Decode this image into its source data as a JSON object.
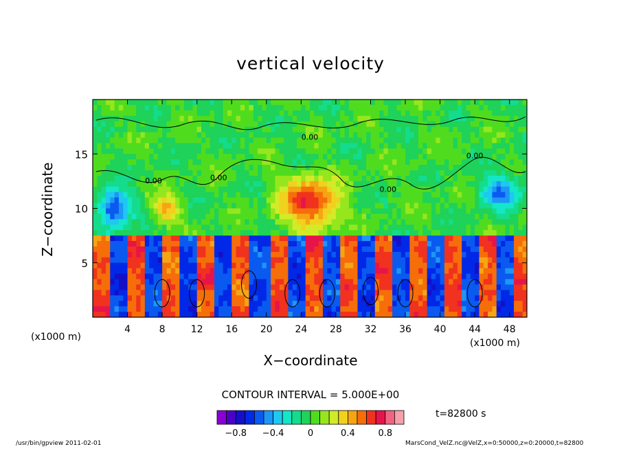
{
  "colors": {
    "palette": [
      "#8a00d4",
      "#4b00c8",
      "#1410c8",
      "#0028e6",
      "#0a5af0",
      "#1e96f5",
      "#1ec8f0",
      "#14e6c8",
      "#14dc8c",
      "#1ed25a",
      "#50dc1e",
      "#96e61e",
      "#d2eb28",
      "#f0d21e",
      "#f5a514",
      "#f56e0a",
      "#f0321e",
      "#e6144b",
      "#f06482",
      "#f5a0aa"
    ]
  },
  "chart_data": {
    "type": "heatmap",
    "title": "vertical velocity",
    "xlabel": "X−coordinate",
    "ylabel": "Z−coordinate",
    "xunit_left": "(x1000 m)",
    "xunit_right": "(x1000 m)",
    "xlim": [
      0,
      50
    ],
    "ylim": [
      0,
      20
    ],
    "xticks": [
      4,
      8,
      12,
      16,
      20,
      24,
      28,
      32,
      36,
      40,
      44,
      48
    ],
    "xtick_labels": [
      "4",
      "8",
      "12",
      "16",
      "20",
      "24",
      "28",
      "32",
      "36",
      "40",
      "44",
      "48"
    ],
    "yticks": [
      5,
      10,
      15
    ],
    "ytick_labels": [
      "5",
      "10",
      "15"
    ],
    "contour_interval_text": "CONTOUR INTERVAL = 5.000E+00",
    "contour_labels": [
      {
        "text": "0.00",
        "x": 7.0,
        "y": 12.3
      },
      {
        "text": "0.00",
        "x": 14.5,
        "y": 12.6
      },
      {
        "text": "0.00",
        "x": 25.0,
        "y": 16.3
      },
      {
        "text": "0.00",
        "x": 34.0,
        "y": 11.5
      },
      {
        "text": "0.00",
        "x": 44.0,
        "y": 14.6
      }
    ],
    "colorbar": {
      "min": -1.0,
      "max": 1.0,
      "levels": 20,
      "ticks": [
        -0.8,
        -0.4,
        0,
        0.4,
        0.8
      ],
      "tick_labels": [
        "−0.8",
        "−0.4",
        "0",
        "0.4",
        "0.8"
      ]
    },
    "time_label": "t=82800  s",
    "grid": false,
    "legend": "bottom"
  },
  "footer": {
    "left": "/usr/bin/gpview   2011-02-01",
    "right": "MarsCond_VelZ.nc@VelZ,x=0:50000,z=0:20000,t=82800"
  }
}
